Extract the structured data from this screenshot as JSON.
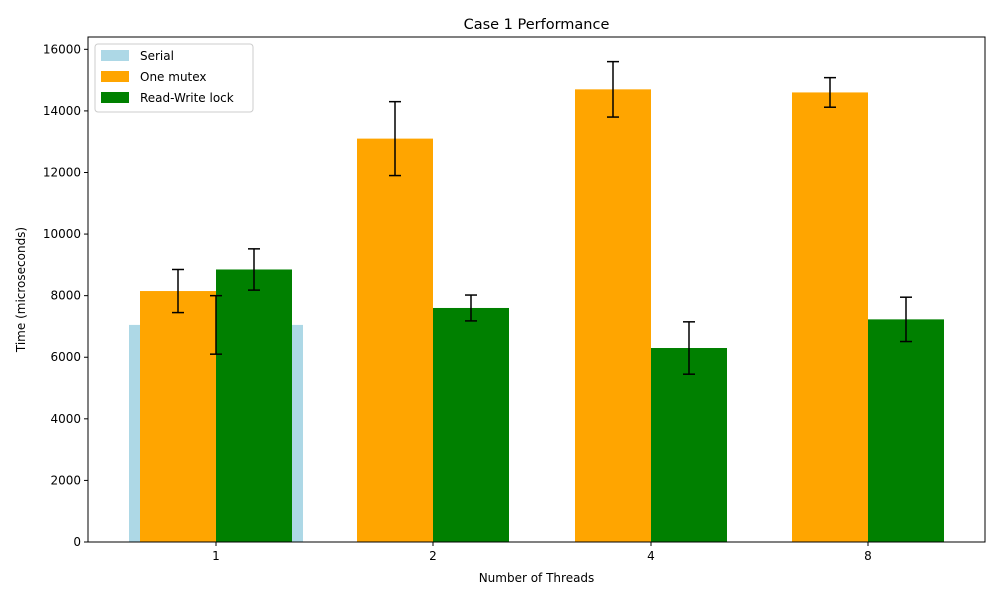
{
  "chart_data": {
    "type": "bar",
    "title": "Case 1 Performance",
    "xlabel": "Number of Threads",
    "ylabel": "Time (microseconds)",
    "categories": [
      "1",
      "2",
      "4",
      "8"
    ],
    "ylim": [
      0,
      16400
    ],
    "yticks": [
      0,
      2000,
      4000,
      6000,
      8000,
      10000,
      12000,
      14000,
      16000
    ],
    "grid": false,
    "legend_position": "top-left",
    "serial": {
      "name": "Serial",
      "category": "1",
      "value": 7050,
      "error": 950,
      "color": "#add8e6"
    },
    "series": [
      {
        "name": "One mutex",
        "color": "#ffa500",
        "values": [
          8150,
          13100,
          14700,
          14600
        ],
        "errors": [
          700,
          1200,
          900,
          480
        ]
      },
      {
        "name": "Read-Write lock",
        "color": "#008000",
        "values": [
          8850,
          7600,
          6300,
          7230
        ],
        "errors": [
          670,
          420,
          850,
          720
        ]
      }
    ]
  }
}
